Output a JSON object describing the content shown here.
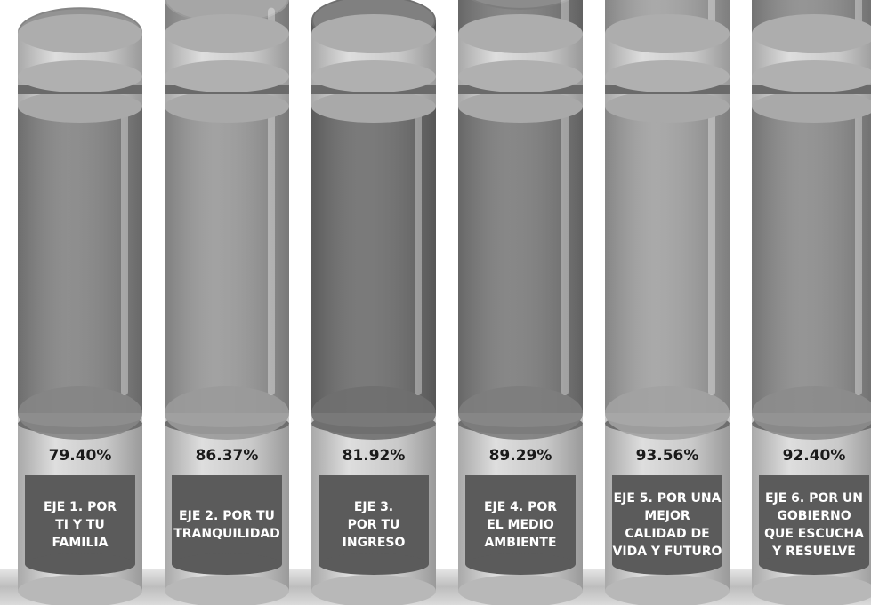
{
  "chart_data": {
    "type": "bar",
    "style": "3d-cylinder",
    "title": "",
    "xlabel": "",
    "ylabel": "",
    "ylim": [
      0,
      100
    ],
    "value_unit": "%",
    "categories": [
      [
        "EJE 1. POR",
        "TI Y TU",
        "FAMILIA"
      ],
      [
        "EJE 2. POR TU",
        "TRANQUILIDAD"
      ],
      [
        "EJE 3.",
        "POR TU",
        "INGRESO"
      ],
      [
        "EJE 4. POR",
        "EL MEDIO",
        "AMBIENTE"
      ],
      [
        "EJE 5. POR UNA",
        "MEJOR",
        "CALIDAD DE",
        "VIDA Y FUTURO"
      ],
      [
        "EJE 6. POR UN",
        "GOBIERNO",
        "QUE ESCUCHA",
        "Y RESUELVE"
      ]
    ],
    "values": [
      79.4,
      86.37,
      81.92,
      89.29,
      93.56,
      92.4
    ],
    "value_labels": [
      "79.40%",
      "86.37%",
      "81.92%",
      "89.29%",
      "93.56%",
      "92.40%"
    ],
    "colors": [
      "#858585",
      "#9a9a9a",
      "#6f6f6f",
      "#7d7d7d",
      "#a2a2a2",
      "#8c8c8c"
    ],
    "grid": false,
    "legend": "none"
  }
}
